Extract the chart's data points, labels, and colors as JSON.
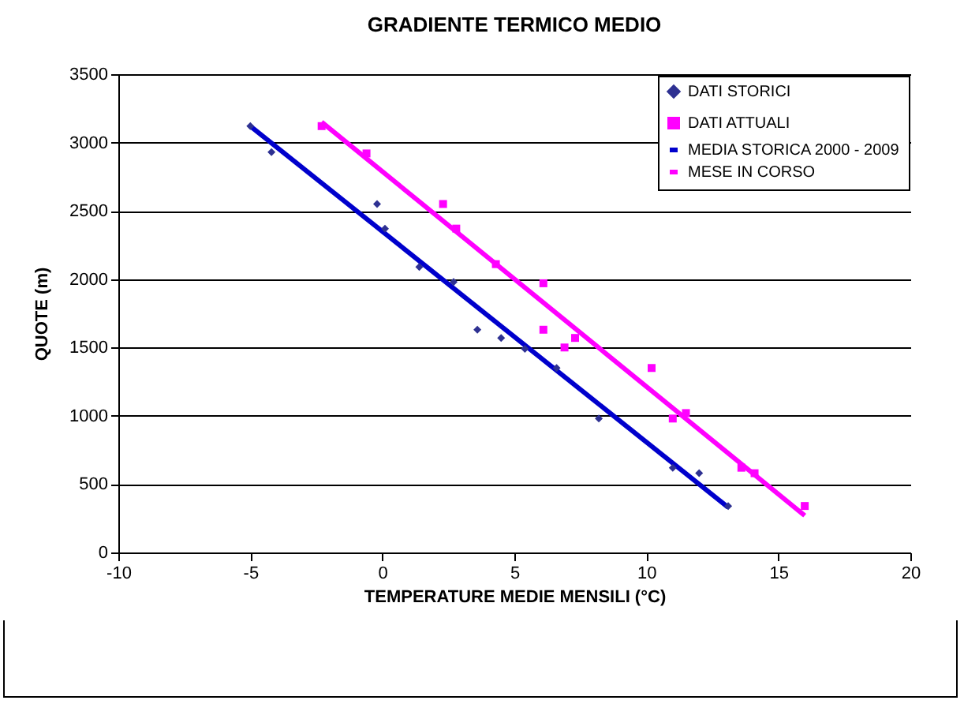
{
  "chart_data": {
    "type": "scatter",
    "title": "GRADIENTE TERMICO MEDIO",
    "xlabel": "TEMPERATURE MEDIE MENSILI (°C)",
    "ylabel": "QUOTE (m)",
    "xlim": [
      -10,
      20
    ],
    "xticks": [
      -10,
      -5,
      0,
      5,
      10,
      15,
      20
    ],
    "ylim": [
      0,
      3500
    ],
    "yticks": [
      0,
      500,
      1000,
      1500,
      2000,
      2500,
      3000,
      3500
    ],
    "grid": "y",
    "legend": "top right",
    "series": [
      {
        "name": "DATI STORICI",
        "marker": "diamond",
        "color": "#2e3192",
        "x": [
          -5.0,
          -4.2,
          -0.2,
          0.1,
          1.4,
          2.7,
          3.6,
          4.5,
          5.4,
          6.6,
          8.2,
          11.0,
          12.0,
          13.1
        ],
        "values": [
          3120,
          2930,
          2550,
          2370,
          2090,
          1980,
          1630,
          1570,
          1490,
          1350,
          980,
          620,
          580,
          340
        ]
      },
      {
        "name": "DATI ATTUALI",
        "marker": "square",
        "color": "#ff00ff",
        "x": [
          -2.3,
          -0.6,
          2.3,
          2.8,
          4.3,
          6.1,
          6.1,
          6.9,
          7.3,
          10.2,
          11.0,
          11.5,
          13.6,
          14.1,
          16.0
        ],
        "values": [
          3120,
          2920,
          2550,
          2370,
          2110,
          1970,
          1630,
          1500,
          1570,
          1350,
          980,
          1020,
          620,
          580,
          340
        ]
      },
      {
        "name": "MEDIA STORICA 2000 - 2009",
        "type": "line",
        "color": "#0000cc",
        "x": [
          -5.0,
          13.1
        ],
        "values": [
          3120,
          330
        ]
      },
      {
        "name": "MESE IN CORSO",
        "type": "line",
        "color": "#ff00ff",
        "x": [
          -2.3,
          16.0
        ],
        "values": [
          3150,
          270
        ]
      }
    ]
  }
}
